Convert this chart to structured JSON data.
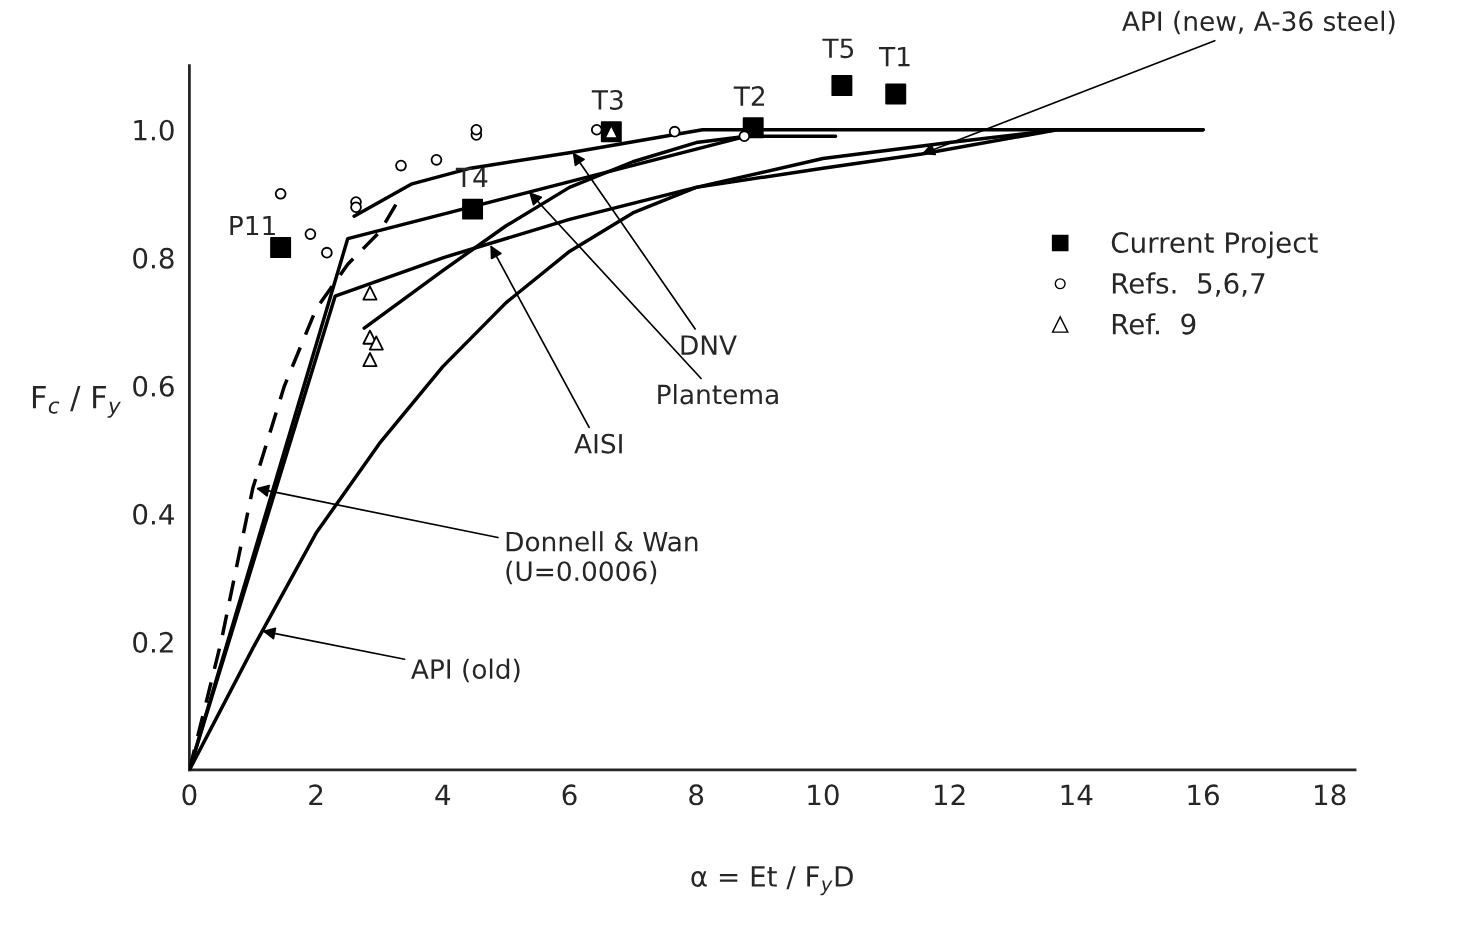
{
  "chart_data": {
    "type": "line",
    "xlabel": "α = Et / F$_{y}$D",
    "ylabel": "F$_{c}$ / F$_{y}$",
    "xlim": [
      0,
      18.4
    ],
    "ylim": [
      0,
      1.1
    ],
    "xticks": [
      0,
      2,
      4,
      6,
      8,
      10,
      12,
      14,
      16,
      18
    ],
    "yticks": [
      0.2,
      0.4,
      0.6,
      0.8,
      {
        "value": 1.0,
        "label": "1.0"
      }
    ],
    "grid": false,
    "legend": "top right",
    "series": [
      {
        "name": "Current Project",
        "type": "scatter",
        "marker": "square",
        "color": "#000000",
        "x": [
          1.44,
          4.47,
          6.66,
          8.9,
          10.3,
          11.15
        ],
        "values": [
          0.816,
          0.876,
          0.997,
          1.003,
          1.069,
          1.056
        ]
      },
      {
        "name": "Refs.  5,6,7",
        "type": "scatter",
        "marker": "circle",
        "color": "#000000",
        "x": [
          1.44,
          1.91,
          2.17,
          2.63,
          2.63,
          3.34,
          3.9,
          4.53,
          4.53,
          6.43,
          7.66,
          8.76
        ],
        "values": [
          0.9,
          0.837,
          0.808,
          0.887,
          0.879,
          0.944,
          0.953,
          0.992,
          1.0,
          1.0,
          0.997,
          0.99
        ]
      },
      {
        "name": "Ref.  9",
        "type": "scatter",
        "marker": "triangle",
        "color": "#000000",
        "x": [
          2.85,
          2.85,
          2.95,
          2.85,
          6.66
        ],
        "values": [
          0.745,
          0.676,
          0.667,
          0.641,
          0.997
        ]
      },
      {
        "line_style": "solid",
        "color": "#000000",
        "x": [
          0,
          1,
          2,
          3,
          4,
          5,
          6,
          7,
          8,
          10,
          12,
          13.7,
          16
        ],
        "values": [
          0,
          0.19,
          0.37,
          0.51,
          0.63,
          0.73,
          0.81,
          0.87,
          0.91,
          0.955,
          0.98,
          1.0,
          1.0
        ]
      },
      {
        "line_style": "solid",
        "color": "#000000",
        "x": [
          0,
          2.3,
          4,
          6,
          8,
          10,
          11.56,
          13.7,
          16
        ],
        "values": [
          0,
          0.74,
          0.8,
          0.86,
          0.91,
          0.94,
          0.962,
          1.0,
          1.0
        ]
      },
      {
        "line_style": "solid",
        "color": "#000000",
        "x": [
          2.76,
          4,
          5,
          6,
          7,
          8,
          8.8,
          10.2
        ],
        "values": [
          0.69,
          0.78,
          0.85,
          0.91,
          0.95,
          0.98,
          0.99,
          0.99
        ]
      },
      {
        "line_style": "solid",
        "color": "#000000",
        "x": [
          0,
          2.5,
          8.8
        ],
        "values": [
          0,
          0.83,
          0.99
        ]
      },
      {
        "line_style": "solid",
        "color": "#000000",
        "x": [
          2.6,
          3.5,
          4.44,
          6.05,
          8.1,
          16
        ],
        "values": [
          0.865,
          0.915,
          0.94,
          0.965,
          1.0,
          1.0
        ]
      },
      {
        "line_style": "dashed",
        "color": "#000000",
        "x": [
          0,
          0.5,
          1,
          1.5,
          2,
          2.5,
          3,
          3.3
        ],
        "values": [
          0,
          0.2,
          0.44,
          0.6,
          0.72,
          0.79,
          0.84,
          0.89
        ]
      }
    ],
    "annotations": [
      {
        "text": "P11",
        "x": 1.44,
        "y": 0.816
      },
      {
        "text": "T4",
        "x": 4.47,
        "y": 0.876
      },
      {
        "text": "T3",
        "x": 6.66,
        "y": 0.997
      },
      {
        "text": "T2",
        "x": 8.9,
        "y": 1.003
      },
      {
        "text": "T5",
        "x": 10.3,
        "y": 1.069
      },
      {
        "text": "T1",
        "x": 11.15,
        "y": 1.056
      },
      {
        "text": "API (new, A-36 steel)",
        "x": 11.56,
        "y": 0.962
      },
      {
        "text": "DNV",
        "x": 6.05,
        "y": 0.965
      },
      {
        "text": "Plantema",
        "x": 5.36,
        "y": 0.903
      },
      {
        "text": "AISI",
        "x": 4.75,
        "y": 0.82
      },
      {
        "text": "Donnell & Wan\n(U=0.0006)",
        "x": 1.05,
        "y": 0.44
      },
      {
        "text": "API (old)",
        "x": 1.15,
        "y": 0.217
      }
    ]
  }
}
